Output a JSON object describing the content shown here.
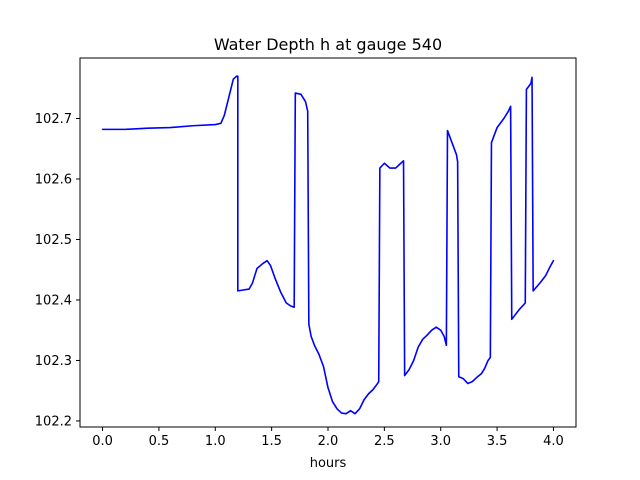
{
  "chart_data": {
    "type": "line",
    "title": "Water Depth h at gauge 540",
    "xlabel": "hours",
    "ylabel": "",
    "xlim": [
      -0.2,
      4.2
    ],
    "ylim": [
      102.19,
      102.8
    ],
    "xticks": [
      0.0,
      0.5,
      1.0,
      1.5,
      2.0,
      2.5,
      3.0,
      3.5,
      4.0
    ],
    "xtick_labels": [
      "0.0",
      "0.5",
      "1.0",
      "1.5",
      "2.0",
      "2.5",
      "3.0",
      "3.5",
      "4.0"
    ],
    "yticks": [
      102.2,
      102.3,
      102.4,
      102.5,
      102.6,
      102.7
    ],
    "ytick_labels": [
      "102.2",
      "102.3",
      "102.4",
      "102.5",
      "102.6",
      "102.7"
    ],
    "grid": false,
    "series": [
      {
        "color": "#0000ff",
        "x": [
          0.0,
          0.2,
          0.4,
          0.6,
          0.8,
          1.0,
          1.05,
          1.08,
          1.12,
          1.16,
          1.19,
          1.2,
          1.2,
          1.3,
          1.33,
          1.37,
          1.42,
          1.46,
          1.49,
          1.53,
          1.58,
          1.63,
          1.67,
          1.7,
          1.71,
          1.76,
          1.8,
          1.82,
          1.83,
          1.85,
          1.88,
          1.92,
          1.96,
          2.0,
          2.04,
          2.08,
          2.12,
          2.16,
          2.2,
          2.24,
          2.28,
          2.32,
          2.36,
          2.4,
          2.44,
          2.45,
          2.46,
          2.5,
          2.55,
          2.6,
          2.64,
          2.67,
          2.68,
          2.72,
          2.76,
          2.8,
          2.84,
          2.88,
          2.92,
          2.96,
          3.0,
          3.03,
          3.05,
          3.06,
          3.1,
          3.14,
          3.15,
          3.16,
          3.2,
          3.24,
          3.28,
          3.32,
          3.36,
          3.39,
          3.42,
          3.44,
          3.45,
          3.5,
          3.56,
          3.6,
          3.62,
          3.63,
          3.7,
          3.75,
          3.76,
          3.8,
          3.81,
          3.82,
          3.88,
          3.93,
          3.97,
          4.0
        ],
        "y": [
          102.682,
          102.682,
          102.684,
          102.685,
          102.688,
          102.69,
          102.692,
          102.705,
          102.735,
          102.765,
          102.77,
          102.77,
          102.415,
          102.418,
          102.428,
          102.452,
          102.46,
          102.465,
          102.457,
          102.436,
          102.413,
          102.395,
          102.39,
          102.388,
          102.742,
          102.74,
          102.728,
          102.712,
          102.36,
          102.34,
          102.325,
          102.31,
          102.29,
          102.255,
          102.232,
          102.22,
          102.213,
          102.212,
          102.217,
          102.212,
          102.22,
          102.235,
          102.245,
          102.252,
          102.262,
          102.265,
          102.618,
          102.626,
          102.618,
          102.618,
          102.625,
          102.63,
          102.275,
          102.285,
          102.3,
          102.322,
          102.335,
          102.342,
          102.35,
          102.355,
          102.35,
          102.34,
          102.325,
          102.68,
          102.66,
          102.64,
          102.628,
          102.273,
          102.27,
          102.262,
          102.265,
          102.272,
          102.278,
          102.287,
          102.3,
          102.305,
          102.66,
          102.685,
          102.7,
          102.712,
          102.72,
          102.368,
          102.385,
          102.395,
          102.748,
          102.758,
          102.768,
          102.415,
          102.428,
          102.44,
          102.455,
          102.465
        ]
      }
    ]
  }
}
